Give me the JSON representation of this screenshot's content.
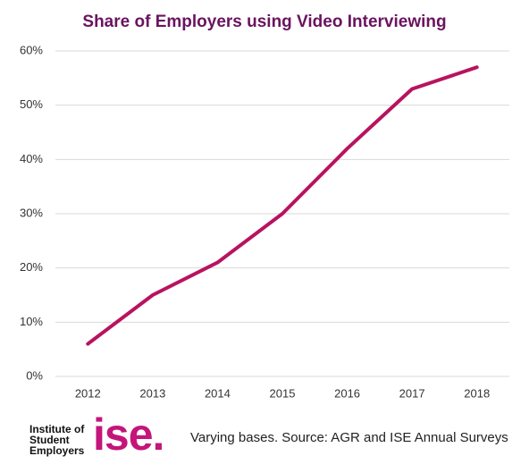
{
  "chart_data": {
    "type": "line",
    "title": "Share of Employers using Video Interviewing",
    "categories": [
      "2012",
      "2013",
      "2014",
      "2015",
      "2016",
      "2017",
      "2018"
    ],
    "series": [
      {
        "name": "Share of employers",
        "color": "#b8135f",
        "values": [
          6,
          15,
          21,
          30,
          42,
          53,
          57
        ]
      }
    ],
    "ylim": [
      0,
      60
    ],
    "yticks": [
      {
        "value": 0,
        "label": "0%"
      },
      {
        "value": 10,
        "label": "10%"
      },
      {
        "value": 20,
        "label": "20%"
      },
      {
        "value": 30,
        "label": "30%"
      },
      {
        "value": 40,
        "label": "40%"
      },
      {
        "value": 50,
        "label": "50%"
      },
      {
        "value": 60,
        "label": "60%"
      }
    ],
    "grid": true
  },
  "footer": {
    "logo_lines": [
      "Institute of",
      "Student",
      "Employers"
    ],
    "logo_mark": "ise.",
    "source": "Varying bases. Source: AGR and ISE Annual Surveys"
  }
}
